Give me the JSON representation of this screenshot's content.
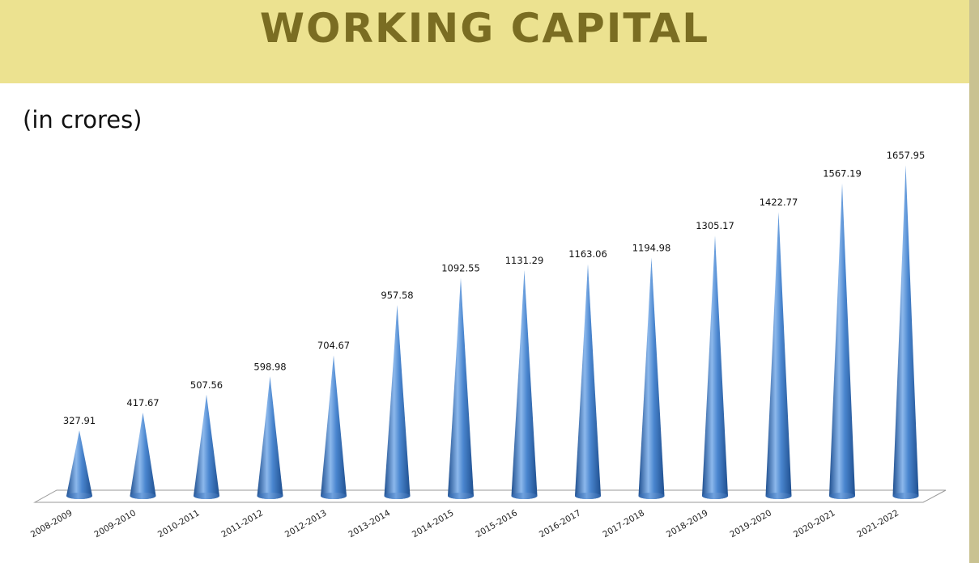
{
  "header": {
    "title": "WORKING CAPITAL",
    "subtitle": "(in crores)"
  },
  "colors": {
    "banner": "#ece290",
    "title_text": "#7a6d22",
    "cone_dark": "#1f4f8f",
    "cone_mid": "#4a86cf",
    "cone_light": "#8cb8ec"
  },
  "chart_data": {
    "type": "bar",
    "categories": [
      "2008-2009",
      "2009-2010",
      "2010-2011",
      "2011-2012",
      "2012-2013",
      "2013-2014",
      "2014-2015",
      "2015-2016",
      "2016-2017",
      "2017-2018",
      "2018-2019",
      "2019-2020",
      "2020-2021",
      "2021-2022"
    ],
    "values": [
      327.91,
      417.67,
      507.56,
      598.98,
      704.67,
      957.58,
      1092.55,
      1131.29,
      1163.06,
      1194.98,
      1305.17,
      1422.77,
      1567.19,
      1657.95
    ],
    "data_labels": [
      "327.91",
      "417.67",
      "507.56",
      "598.98",
      "704.67",
      "957.58",
      "1092.55",
      "1131.29",
      "1163.06",
      "1194.98",
      "1305.17",
      "1422.77",
      "1567.19",
      "1657.95"
    ],
    "title": "WORKING CAPITAL",
    "ylabel": "(in crores)",
    "xlabel": "",
    "ylim": [
      0,
      1800
    ],
    "bar_shape": "cone",
    "grid": false,
    "legend": "none"
  }
}
